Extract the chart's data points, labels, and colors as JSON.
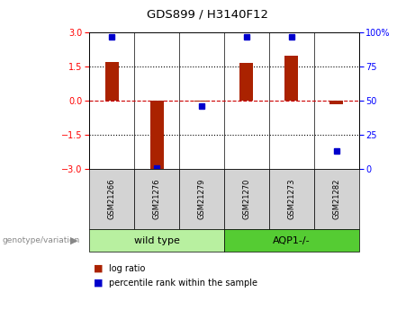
{
  "title": "GDS899 / H3140F12",
  "samples": [
    "GSM21266",
    "GSM21276",
    "GSM21279",
    "GSM21270",
    "GSM21273",
    "GSM21282"
  ],
  "groups": [
    {
      "name": "wild type",
      "color": "#b8f0a0",
      "span": [
        0,
        3
      ]
    },
    {
      "name": "AQP1-/-",
      "color": "#55cc33",
      "span": [
        3,
        6
      ]
    }
  ],
  "log_ratio": [
    1.7,
    -3.0,
    -0.05,
    1.65,
    2.0,
    -0.15
  ],
  "percentile_rank": [
    97,
    1,
    46,
    97,
    97,
    13
  ],
  "ylim_left": [
    -3,
    3
  ],
  "ylim_right": [
    0,
    100
  ],
  "yticks_left": [
    -3,
    -1.5,
    0,
    1.5,
    3
  ],
  "yticks_right": [
    0,
    25,
    50,
    75,
    100
  ],
  "bar_color": "#aa2200",
  "dot_color": "#0000cc",
  "hline_color": "#cc0000",
  "title_fontsize": 9,
  "label_genotype": "genotype/variation",
  "legend_log_ratio": "log ratio",
  "legend_percentile": "percentile rank within the sample"
}
